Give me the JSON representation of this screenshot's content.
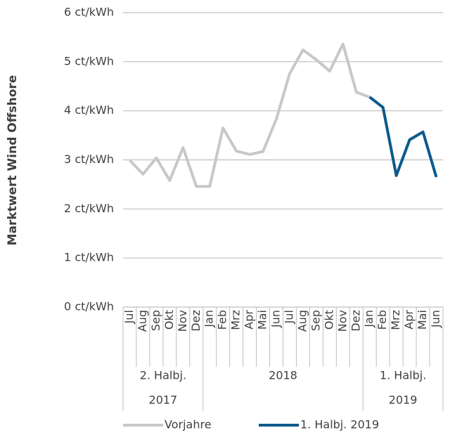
{
  "chart_data": {
    "type": "line",
    "y_axis_label": "Marktwert Wind Offshore",
    "groups": [
      {
        "label": [
          "2. Halbj.",
          "2017"
        ],
        "categories": [
          "Jul",
          "Aug",
          "Sep",
          "Okt",
          "Nov",
          "Dez"
        ]
      },
      {
        "label": [
          "2018"
        ],
        "categories": [
          "Jan",
          "Feb",
          "Mrz",
          "Apr",
          "Mai",
          "Jun",
          "Jul",
          "Aug",
          "Sep",
          "Okt",
          "Nov",
          "Dez"
        ]
      },
      {
        "label": [
          "1. Halbj.",
          "2019"
        ],
        "categories": [
          "Jan",
          "Feb",
          "Mrz",
          "Apr",
          "Mai",
          "Jun"
        ]
      }
    ],
    "series": [
      {
        "name": "Vorjahre",
        "color": "#c8c8c8",
        "values": [
          2.99,
          2.71,
          3.04,
          2.58,
          3.25,
          2.46,
          2.46,
          3.65,
          3.18,
          3.11,
          3.17,
          3.83,
          4.76,
          5.24,
          5.04,
          4.81,
          5.36,
          4.38,
          4.28,
          null,
          null,
          null,
          null,
          null
        ]
      },
      {
        "name": "1. Halbj. 2019",
        "color": "#0d5a8c",
        "values": [
          null,
          null,
          null,
          null,
          null,
          null,
          null,
          null,
          null,
          null,
          null,
          null,
          null,
          null,
          null,
          null,
          null,
          null,
          4.28,
          4.07,
          2.68,
          3.41,
          3.57,
          2.65
        ]
      }
    ],
    "ylim": [
      0,
      6
    ],
    "yticks": [
      {
        "value": 0,
        "label": "0 ct/kWh"
      },
      {
        "value": 1,
        "label": "1 ct/kWh"
      },
      {
        "value": 2,
        "label": "2 ct/kWh"
      },
      {
        "value": 3,
        "label": "3 ct/kWh"
      },
      {
        "value": 4,
        "label": "4 ct/kWh"
      },
      {
        "value": 5,
        "label": "5 ct/kWh"
      },
      {
        "value": 6,
        "label": "6 ct/kWh"
      }
    ],
    "grid": true,
    "legend": "bottom"
  }
}
